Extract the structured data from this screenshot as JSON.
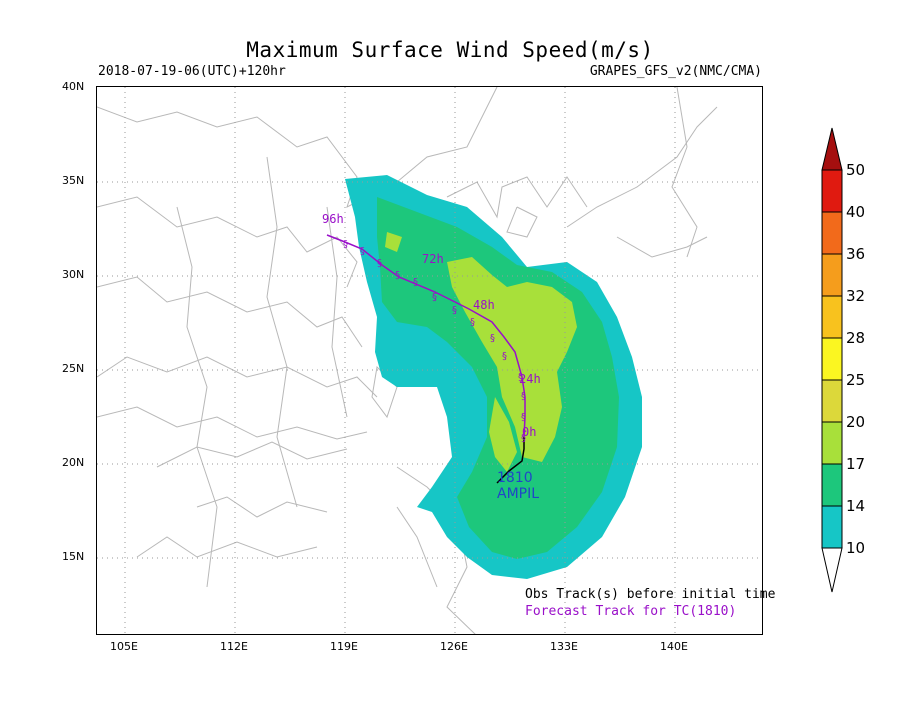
{
  "header": {
    "title": "Maximum Surface Wind Speed(m/s)",
    "run_info": "2018-07-19-06(UTC)+120hr",
    "model": "GRAPES_GFS_v2(NMC/CMA)"
  },
  "axes": {
    "lat_labels": [
      "40N",
      "35N",
      "30N",
      "25N",
      "20N",
      "15N"
    ],
    "lon_labels": [
      "105E",
      "112E",
      "119E",
      "126E",
      "133E",
      "140E"
    ]
  },
  "colorbar": {
    "levels": [
      "50",
      "40",
      "36",
      "32",
      "28",
      "25",
      "20",
      "17",
      "14",
      "10"
    ],
    "colors": [
      "#e01a10",
      "#f26a1b",
      "#f59d1c",
      "#f8c21e",
      "#fbf621",
      "#dcd83a",
      "#a8e03a",
      "#1dc77c",
      "#16c6c6",
      "#ffffff"
    ]
  },
  "storm": {
    "id": "1810",
    "name": "AMPIL",
    "track_labels": [
      "96h",
      "72h",
      "48h",
      "24h",
      "0h"
    ]
  },
  "legend_notes": {
    "obs": "Obs Track(s) before initial time",
    "forecast": "Forecast Track for TC(1810)"
  },
  "colors": {
    "cyan": "#16c6c6",
    "green": "#1dc77c",
    "lightgreen": "#a8e03a",
    "track": "#9a10c9",
    "obs": "#000000"
  }
}
